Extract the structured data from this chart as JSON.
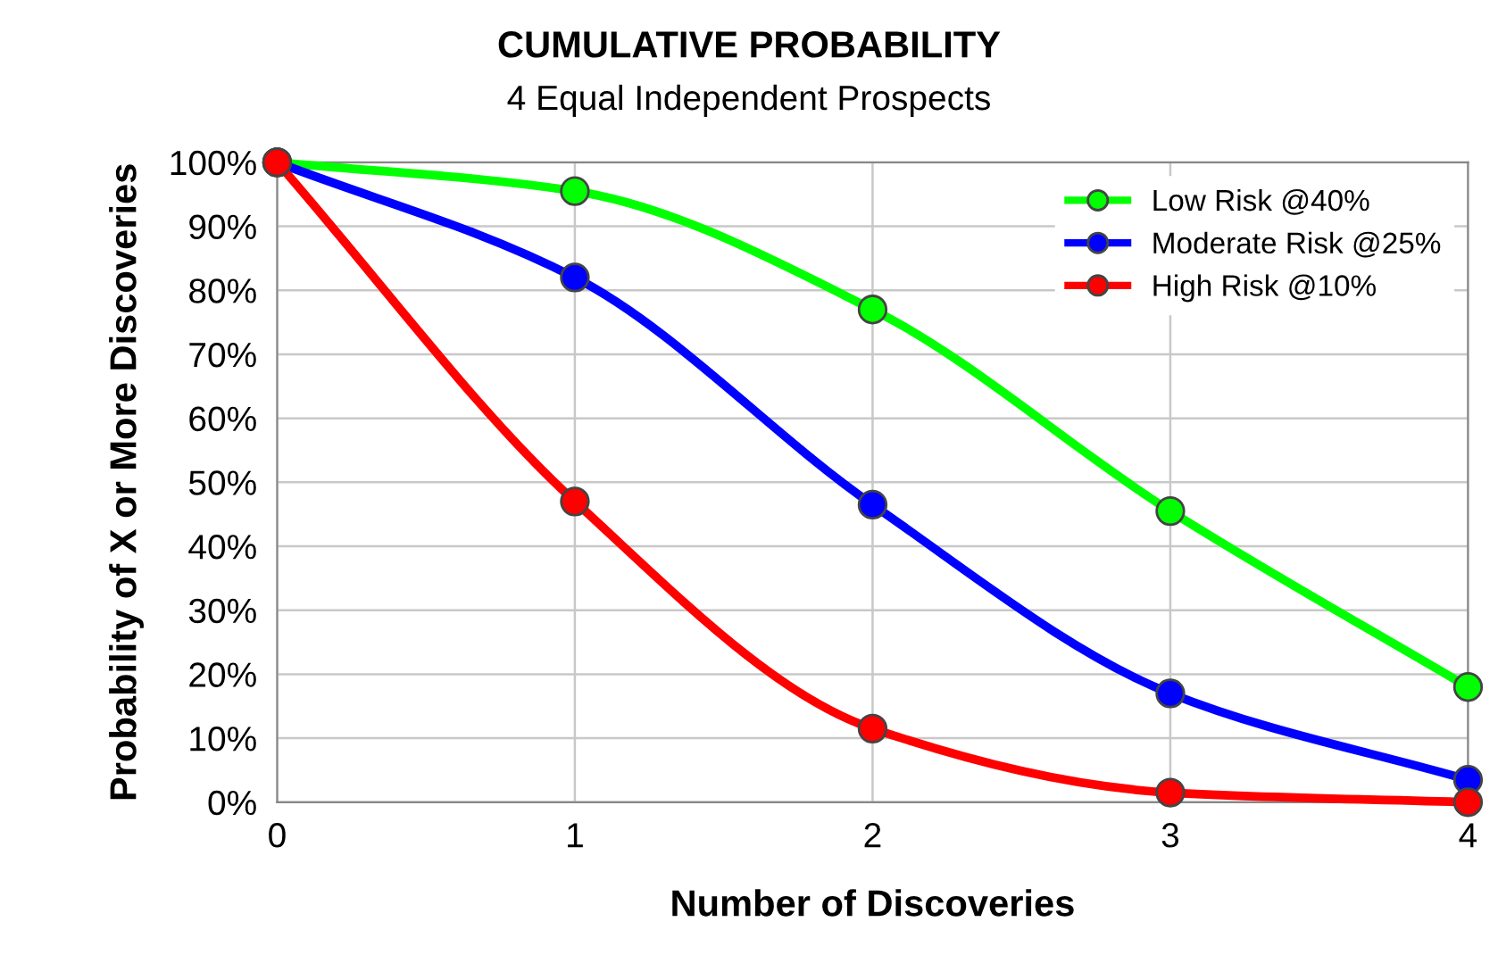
{
  "chart_data": {
    "type": "line",
    "title": "CUMULATIVE PROBABILITY",
    "subtitle": "4 Equal Independent Prospects",
    "xlabel": "Number of Discoveries",
    "ylabel": "Probability of X or More Discoveries",
    "x": [
      0,
      1,
      2,
      3,
      4
    ],
    "series": [
      {
        "name": "Low Risk @40%",
        "color": "#00ff00",
        "values": [
          100,
          95.5,
          77,
          45.5,
          18
        ]
      },
      {
        "name": "Moderate Risk @25%",
        "color": "#0000ff",
        "values": [
          100,
          82,
          46.5,
          17,
          3.5
        ]
      },
      {
        "name": "High Risk @10%",
        "color": "#ff0000",
        "values": [
          100,
          47,
          11.5,
          1.5,
          0
        ]
      }
    ],
    "xlim": [
      0,
      4
    ],
    "xticks": [
      0,
      1,
      2,
      3,
      4
    ],
    "ylim": [
      0,
      100
    ],
    "yticks": [
      {
        "value": 0,
        "label": "0%"
      },
      {
        "value": 10,
        "label": "10%"
      },
      {
        "value": 20,
        "label": "20%"
      },
      {
        "value": 30,
        "label": "30%"
      },
      {
        "value": 40,
        "label": "40%"
      },
      {
        "value": 50,
        "label": "50%"
      },
      {
        "value": 60,
        "label": "60%"
      },
      {
        "value": 70,
        "label": "70%"
      },
      {
        "value": 80,
        "label": "80%"
      },
      {
        "value": 90,
        "label": "90%"
      },
      {
        "value": 100,
        "label": "100%"
      }
    ],
    "grid": true,
    "legend": "top right",
    "marker": "circle",
    "line_style": "solid"
  }
}
